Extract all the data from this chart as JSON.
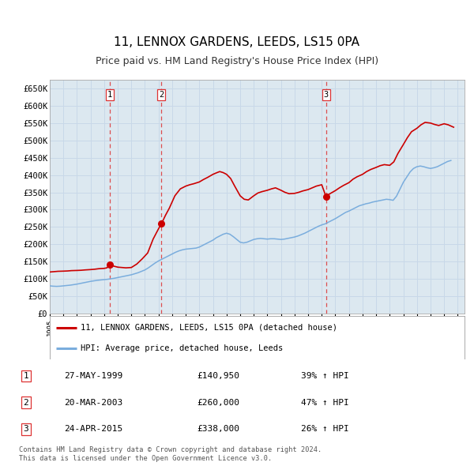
{
  "title": "11, LENNOX GARDENS, LEEDS, LS15 0PA",
  "subtitle": "Price paid vs. HM Land Registry's House Price Index (HPI)",
  "title_fontsize": 11,
  "subtitle_fontsize": 9,
  "ylabel_ticks": [
    "£0",
    "£50K",
    "£100K",
    "£150K",
    "£200K",
    "£250K",
    "£300K",
    "£350K",
    "£400K",
    "£450K",
    "£500K",
    "£550K",
    "£600K",
    "£650K"
  ],
  "ytick_vals": [
    0,
    50000,
    100000,
    150000,
    200000,
    250000,
    300000,
    350000,
    400000,
    450000,
    500000,
    550000,
    600000,
    650000
  ],
  "ylim": [
    0,
    675000
  ],
  "xlim_start": 1995.0,
  "xlim_end": 2025.5,
  "grid_color": "#c8d8e8",
  "plot_bg_color": "#dce8f0",
  "red_line_color": "#cc0000",
  "blue_line_color": "#7aaddd",
  "sale_color": "#cc0000",
  "vline_color": "#dd3333",
  "legend_label_red": "11, LENNOX GARDENS, LEEDS, LS15 0PA (detached house)",
  "legend_label_blue": "HPI: Average price, detached house, Leeds",
  "transactions": [
    {
      "num": 1,
      "date": "27-MAY-1999",
      "price": 140950,
      "pct": "39%",
      "year": 1999.42
    },
    {
      "num": 2,
      "date": "20-MAR-2003",
      "price": 260000,
      "pct": "47%",
      "year": 2003.22
    },
    {
      "num": 3,
      "date": "24-APR-2015",
      "price": 338000,
      "pct": "26%",
      "year": 2015.31
    }
  ],
  "footer_line1": "Contains HM Land Registry data © Crown copyright and database right 2024.",
  "footer_line2": "This data is licensed under the Open Government Licence v3.0.",
  "hpi_data": {
    "years": [
      1995.0,
      1995.25,
      1995.5,
      1995.75,
      1996.0,
      1996.25,
      1996.5,
      1996.75,
      1997.0,
      1997.25,
      1997.5,
      1997.75,
      1998.0,
      1998.25,
      1998.5,
      1998.75,
      1999.0,
      1999.25,
      1999.5,
      1999.75,
      2000.0,
      2000.25,
      2000.5,
      2000.75,
      2001.0,
      2001.25,
      2001.5,
      2001.75,
      2002.0,
      2002.25,
      2002.5,
      2002.75,
      2003.0,
      2003.25,
      2003.5,
      2003.75,
      2004.0,
      2004.25,
      2004.5,
      2004.75,
      2005.0,
      2005.25,
      2005.5,
      2005.75,
      2006.0,
      2006.25,
      2006.5,
      2006.75,
      2007.0,
      2007.25,
      2007.5,
      2007.75,
      2008.0,
      2008.25,
      2008.5,
      2008.75,
      2009.0,
      2009.25,
      2009.5,
      2009.75,
      2010.0,
      2010.25,
      2010.5,
      2010.75,
      2011.0,
      2011.25,
      2011.5,
      2011.75,
      2012.0,
      2012.25,
      2012.5,
      2012.75,
      2013.0,
      2013.25,
      2013.5,
      2013.75,
      2014.0,
      2014.25,
      2014.5,
      2014.75,
      2015.0,
      2015.25,
      2015.5,
      2015.75,
      2016.0,
      2016.25,
      2016.5,
      2016.75,
      2017.0,
      2017.25,
      2017.5,
      2017.75,
      2018.0,
      2018.25,
      2018.5,
      2018.75,
      2019.0,
      2019.25,
      2019.5,
      2019.75,
      2020.0,
      2020.25,
      2020.5,
      2020.75,
      2021.0,
      2021.25,
      2021.5,
      2021.75,
      2022.0,
      2022.25,
      2022.5,
      2022.75,
      2023.0,
      2023.25,
      2023.5,
      2023.75,
      2024.0,
      2024.25,
      2024.5
    ],
    "values": [
      80000,
      79000,
      78500,
      79000,
      80000,
      81000,
      82000,
      83500,
      85000,
      87000,
      89000,
      91000,
      93000,
      94500,
      96000,
      97000,
      98000,
      99000,
      100500,
      102000,
      104000,
      106000,
      108000,
      110000,
      112000,
      115000,
      118000,
      122000,
      126000,
      132000,
      139000,
      146000,
      152000,
      157000,
      162000,
      167000,
      172000,
      177000,
      181000,
      184000,
      186000,
      187000,
      188000,
      189000,
      192000,
      197000,
      202000,
      207000,
      212000,
      219000,
      224000,
      229000,
      232000,
      229000,
      222000,
      214000,
      206000,
      204000,
      206000,
      210000,
      214000,
      216000,
      217000,
      216000,
      215000,
      216000,
      216000,
      215000,
      214000,
      215000,
      217000,
      219000,
      221000,
      224000,
      228000,
      232000,
      237000,
      242000,
      247000,
      252000,
      256000,
      259000,
      264000,
      269000,
      274000,
      280000,
      286000,
      292000,
      296000,
      301000,
      306000,
      311000,
      314000,
      317000,
      319000,
      322000,
      324000,
      326000,
      328000,
      330000,
      329000,
      327000,
      339000,
      359000,
      379000,
      394000,
      409000,
      419000,
      424000,
      426000,
      424000,
      421000,
      419000,
      421000,
      424000,
      429000,
      434000,
      439000,
      442000
    ]
  },
  "property_data": {
    "years": [
      1995.0,
      1995.3,
      1995.6,
      1996.0,
      1996.3,
      1996.6,
      1997.0,
      1997.3,
      1997.6,
      1998.0,
      1998.3,
      1998.6,
      1999.0,
      1999.2,
      1999.42,
      1999.7,
      2000.0,
      2000.3,
      2000.6,
      2001.0,
      2001.4,
      2001.8,
      2002.2,
      2002.6,
      2003.0,
      2003.22,
      2003.5,
      2003.8,
      2004.2,
      2004.6,
      2005.0,
      2005.3,
      2005.6,
      2006.0,
      2006.3,
      2006.6,
      2007.0,
      2007.3,
      2007.5,
      2007.75,
      2008.0,
      2008.3,
      2008.6,
      2009.0,
      2009.3,
      2009.6,
      2010.0,
      2010.3,
      2010.6,
      2011.0,
      2011.3,
      2011.6,
      2012.0,
      2012.3,
      2012.6,
      2013.0,
      2013.3,
      2013.6,
      2014.0,
      2014.3,
      2014.6,
      2015.0,
      2015.31,
      2015.6,
      2016.0,
      2016.3,
      2016.6,
      2017.0,
      2017.3,
      2017.6,
      2018.0,
      2018.3,
      2018.6,
      2019.0,
      2019.3,
      2019.6,
      2020.0,
      2020.3,
      2020.6,
      2021.0,
      2021.3,
      2021.6,
      2022.0,
      2022.3,
      2022.6,
      2023.0,
      2023.3,
      2023.6,
      2024.0,
      2024.3,
      2024.7
    ],
    "values": [
      120000,
      121000,
      122000,
      122500,
      123000,
      124000,
      124500,
      125000,
      126000,
      127000,
      128000,
      129500,
      130500,
      132000,
      140950,
      137000,
      134000,
      133000,
      132000,
      133000,
      143000,
      158000,
      175000,
      215000,
      245000,
      260000,
      283000,
      305000,
      340000,
      360000,
      368000,
      372000,
      375000,
      380000,
      387000,
      393000,
      402000,
      407000,
      410000,
      407000,
      402000,
      390000,
      368000,
      340000,
      330000,
      328000,
      340000,
      348000,
      352000,
      356000,
      360000,
      363000,
      356000,
      350000,
      346000,
      347000,
      350000,
      354000,
      358000,
      363000,
      368000,
      372000,
      338000,
      346000,
      355000,
      363000,
      370000,
      378000,
      388000,
      395000,
      402000,
      410000,
      416000,
      422000,
      427000,
      430000,
      428000,
      438000,
      462000,
      488000,
      508000,
      525000,
      535000,
      545000,
      552000,
      550000,
      546000,
      543000,
      548000,
      545000,
      538000
    ]
  }
}
